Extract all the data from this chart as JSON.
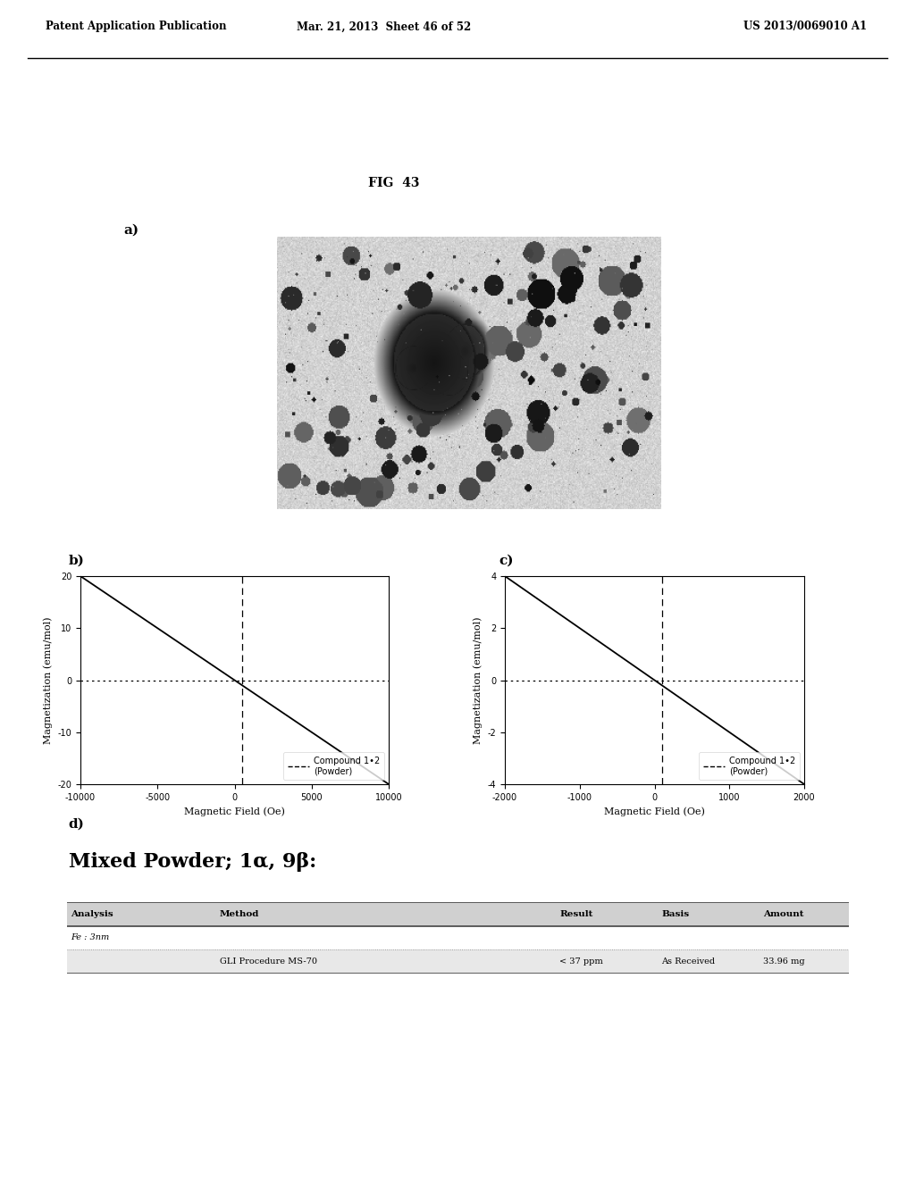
{
  "header_left": "Patent Application Publication",
  "header_mid": "Mar. 21, 2013  Sheet 46 of 52",
  "header_right": "US 2013/0069010 A1",
  "fig_label": "FIG  43",
  "panel_a_label": "a)",
  "panel_b_label": "b)",
  "panel_c_label": "c)",
  "panel_d_label": "d)",
  "plot_b": {
    "xlim": [
      -10000,
      10000
    ],
    "ylim": [
      -20,
      20
    ],
    "xticks": [
      -10000,
      -5000,
      0,
      5000,
      10000
    ],
    "yticks": [
      -20,
      -10,
      0,
      10,
      20
    ],
    "xlabel": "Magnetic Field (Oe)",
    "ylabel": "Magnetization (emu/mol)",
    "line_x": [
      -10000,
      10000
    ],
    "line_y": [
      20,
      -20
    ],
    "dashed_x_val": 500,
    "legend_label": "Compound 1•2\n(Powder)"
  },
  "plot_c": {
    "xlim": [
      -2000,
      2000
    ],
    "ylim": [
      -4,
      4
    ],
    "xticks": [
      -2000,
      -1000,
      0,
      1000,
      2000
    ],
    "yticks": [
      -4,
      -2,
      0,
      2,
      4
    ],
    "xlabel": "Magnetic Field (Oe)",
    "ylabel": "Magnetization (emu/mol)",
    "line_x": [
      -2000,
      2000
    ],
    "line_y": [
      4,
      -4
    ],
    "dashed_x_val": 100,
    "legend_label": "Compound 1•2\n(Powder)"
  },
  "table_headers": [
    "Analysis",
    "Method",
    "Result",
    "Basis",
    "Amount"
  ],
  "table_row1": [
    "Fe : 3nm",
    "",
    "",
    "",
    ""
  ],
  "table_row2": [
    "",
    "GLI Procedure MS-70",
    "< 37 ppm",
    "As Received",
    "33.96 mg"
  ],
  "bg_color": "#ffffff",
  "line_color": "#000000",
  "header_bg": "#d0d0d0",
  "row2_bg": "#e8e8e8"
}
